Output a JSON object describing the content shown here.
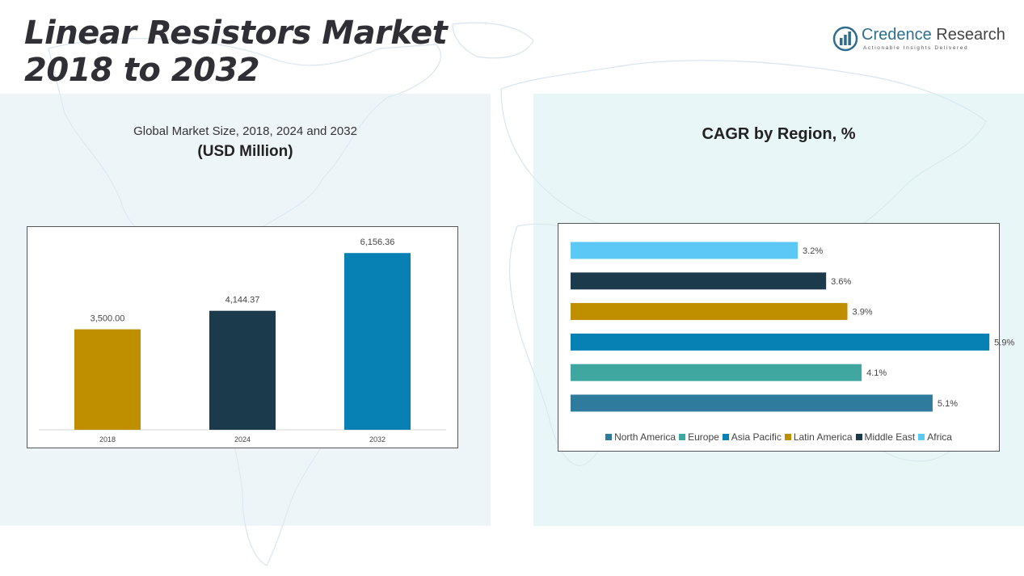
{
  "title_line1": "Linear Resistors Market",
  "title_line2": "2018 to 2032",
  "brand": {
    "name_part1": "Credence",
    "name_part2": " Research",
    "tagline": "Actionable Insights Delivered",
    "logo_icon": "bar-chart-circle-icon",
    "color": "#2d6e8e"
  },
  "left_panel": {
    "subtitle": "Global Market Size, 2018, 2024 and 2032",
    "unit": "(USD Million)"
  },
  "right_panel": {
    "title": "CAGR by Region, %"
  },
  "chart_data": [
    {
      "type": "bar",
      "title": "Global Market Size, 2018, 2024 and 2032",
      "ylabel": "(USD Million)",
      "categories": [
        "2018",
        "2024",
        "2032"
      ],
      "values": [
        3500.0,
        4144.37,
        6156.36
      ],
      "value_labels": [
        "3,500.00",
        "4,144.37",
        "6,156.36"
      ],
      "colors": [
        "#bf8f00",
        "#1b3a4b",
        "#0780b4"
      ],
      "ylim": [
        0,
        6500
      ],
      "grid": false,
      "legend": "none"
    },
    {
      "type": "bar",
      "orientation": "horizontal",
      "title": "CAGR by Region, %",
      "categories": [
        "Africa",
        "Middle East",
        "Latin America",
        "Asia Pacific",
        "Europe",
        "North America"
      ],
      "values": [
        3.2,
        3.6,
        3.9,
        5.9,
        4.1,
        5.1
      ],
      "value_labels": [
        "3.2%",
        "3.6%",
        "3.9%",
        "5.9%",
        "4.1%",
        "5.1%"
      ],
      "colors": [
        "#5bc8f5",
        "#1b3a4b",
        "#bf8f00",
        "#0780b4",
        "#3fa7a0",
        "#2e7b9e"
      ],
      "xlim": [
        0,
        5.75
      ],
      "grid": false,
      "legend": "bottom",
      "legend_order": [
        "North America",
        "Europe",
        "Asia Pacific",
        "Latin America",
        "Middle East",
        "Africa"
      ],
      "legend_colors": [
        "#2e7b9e",
        "#3fa7a0",
        "#0780b4",
        "#bf8f00",
        "#1b3a4b",
        "#5bc8f5"
      ]
    }
  ]
}
